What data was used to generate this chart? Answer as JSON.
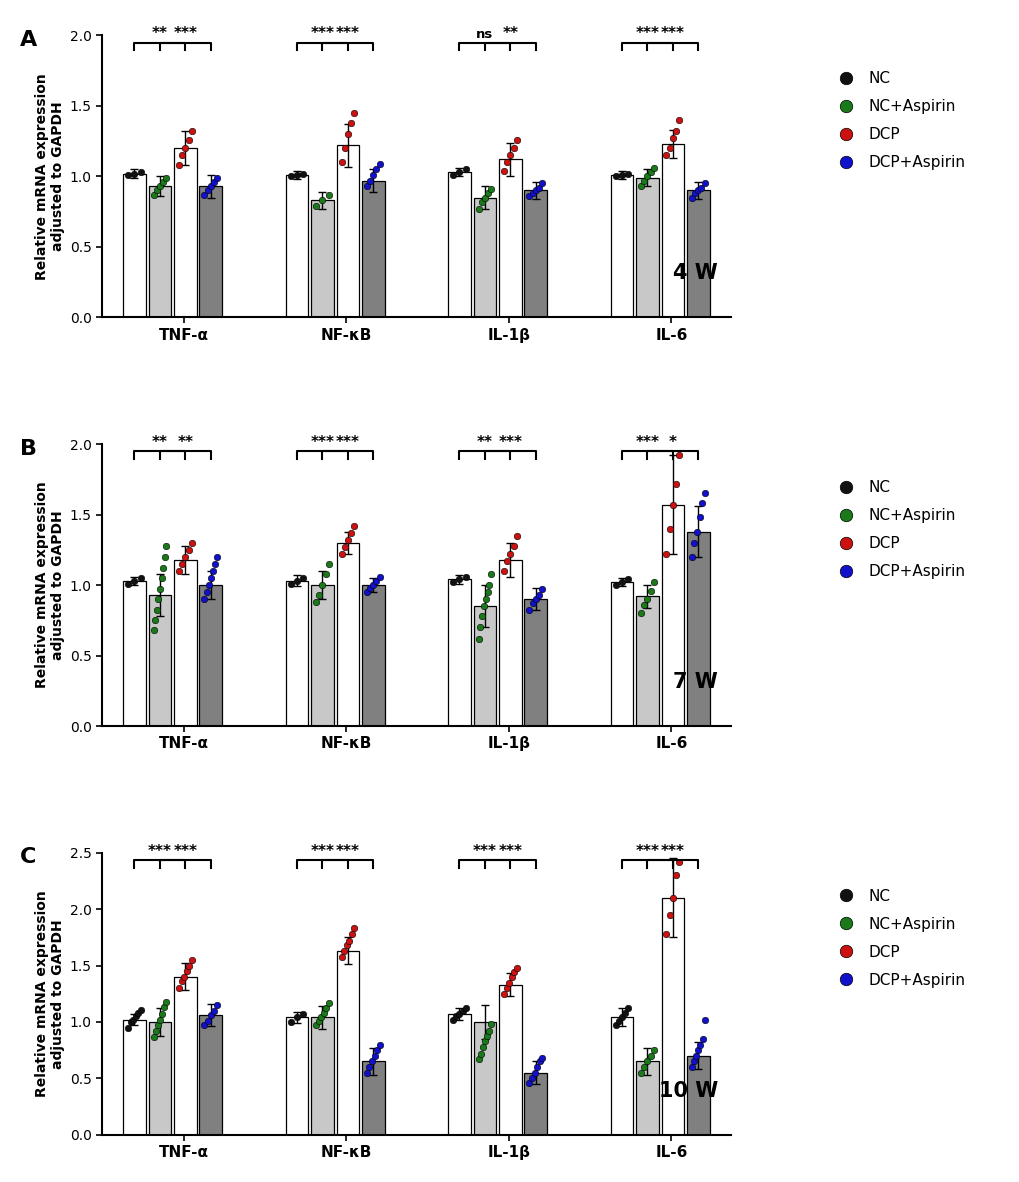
{
  "panels": [
    {
      "label": "A",
      "week_label": "4 W",
      "ylim": [
        0.0,
        2.0
      ],
      "yticks": [
        0.0,
        0.5,
        1.0,
        1.5,
        2.0
      ],
      "genes": [
        "TNF-α",
        "NF-κB",
        "IL-1β",
        "IL-6"
      ],
      "bar_means": [
        1.02,
        0.93,
        1.2,
        0.93,
        1.01,
        0.83,
        1.22,
        0.97,
        1.03,
        0.85,
        1.12,
        0.9,
        1.01,
        0.99,
        1.23,
        0.9
      ],
      "bar_sds": [
        0.03,
        0.07,
        0.12,
        0.08,
        0.03,
        0.06,
        0.15,
        0.08,
        0.03,
        0.08,
        0.12,
        0.06,
        0.03,
        0.06,
        0.1,
        0.06
      ],
      "dots": [
        [
          1.01,
          1.02,
          1.03
        ],
        [
          0.87,
          0.9,
          0.93,
          0.96,
          0.99
        ],
        [
          1.08,
          1.15,
          1.2,
          1.26,
          1.32
        ],
        [
          0.87,
          0.9,
          0.93,
          0.96,
          0.99
        ],
        [
          1.0,
          1.01,
          1.02
        ],
        [
          0.79,
          0.83,
          0.87
        ],
        [
          1.1,
          1.2,
          1.3,
          1.38,
          1.45
        ],
        [
          0.93,
          0.97,
          1.01,
          1.05,
          1.09
        ],
        [
          1.01,
          1.03,
          1.05
        ],
        [
          0.77,
          0.82,
          0.85,
          0.88,
          0.91
        ],
        [
          1.04,
          1.1,
          1.15,
          1.2,
          1.26
        ],
        [
          0.86,
          0.88,
          0.9,
          0.92,
          0.95
        ],
        [
          1.0,
          1.01,
          1.02
        ],
        [
          0.93,
          0.97,
          1.0,
          1.03,
          1.06
        ],
        [
          1.15,
          1.2,
          1.27,
          1.32,
          1.4
        ],
        [
          0.85,
          0.88,
          0.9,
          0.92,
          0.95
        ]
      ],
      "sig_left": [
        "**",
        "***",
        "ns",
        "***"
      ],
      "sig_right": [
        "***",
        "***",
        "**",
        "***"
      ]
    },
    {
      "label": "B",
      "week_label": "7 W",
      "ylim": [
        0.0,
        2.0
      ],
      "yticks": [
        0.0,
        0.5,
        1.0,
        1.5,
        2.0
      ],
      "genes": [
        "TNF-α",
        "NF-κB",
        "IL-1β",
        "IL-6"
      ],
      "bar_means": [
        1.03,
        0.93,
        1.18,
        1.0,
        1.03,
        1.0,
        1.3,
        1.0,
        1.04,
        0.85,
        1.18,
        0.9,
        1.02,
        0.92,
        1.57,
        1.38
      ],
      "bar_sds": [
        0.03,
        0.15,
        0.1,
        0.1,
        0.04,
        0.1,
        0.08,
        0.05,
        0.03,
        0.15,
        0.12,
        0.08,
        0.03,
        0.08,
        0.35,
        0.18
      ],
      "dots": [
        [
          1.01,
          1.03,
          1.05
        ],
        [
          0.68,
          0.75,
          0.82,
          0.9,
          0.97,
          1.05,
          1.12,
          1.2,
          1.28
        ],
        [
          1.1,
          1.15,
          1.2,
          1.25,
          1.3
        ],
        [
          0.9,
          0.95,
          1.0,
          1.05,
          1.1,
          1.15,
          1.2
        ],
        [
          1.01,
          1.03,
          1.05
        ],
        [
          0.88,
          0.93,
          1.0,
          1.08,
          1.15
        ],
        [
          1.22,
          1.27,
          1.32,
          1.37,
          1.42
        ],
        [
          0.95,
          0.98,
          1.0,
          1.03,
          1.06
        ],
        [
          1.02,
          1.04,
          1.06
        ],
        [
          0.62,
          0.7,
          0.78,
          0.85,
          0.9,
          0.95,
          1.0,
          1.08
        ],
        [
          1.1,
          1.17,
          1.22,
          1.28,
          1.35
        ],
        [
          0.82,
          0.87,
          0.9,
          0.93,
          0.97
        ],
        [
          1.0,
          1.02,
          1.04
        ],
        [
          0.8,
          0.86,
          0.9,
          0.96,
          1.02
        ],
        [
          1.22,
          1.4,
          1.57,
          1.72,
          1.92
        ],
        [
          1.2,
          1.3,
          1.38,
          1.48,
          1.58,
          1.65
        ]
      ],
      "sig_left": [
        "**",
        "***",
        "**",
        "***"
      ],
      "sig_right": [
        "**",
        "***",
        "***",
        "*"
      ]
    },
    {
      "label": "C",
      "week_label": "10 W",
      "ylim": [
        0.0,
        2.5
      ],
      "yticks": [
        0.0,
        0.5,
        1.0,
        1.5,
        2.0,
        2.5
      ],
      "genes": [
        "TNF-α",
        "NF-κB",
        "IL-1β",
        "IL-6"
      ],
      "bar_means": [
        1.02,
        1.0,
        1.4,
        1.06,
        1.04,
        1.04,
        1.63,
        0.65,
        1.07,
        1.0,
        1.33,
        0.55,
        1.04,
        0.65,
        2.1,
        0.7
      ],
      "bar_sds": [
        0.05,
        0.12,
        0.12,
        0.1,
        0.05,
        0.1,
        0.12,
        0.12,
        0.05,
        0.15,
        0.1,
        0.1,
        0.08,
        0.12,
        0.35,
        0.12
      ],
      "dots": [
        [
          0.95,
          1.0,
          1.02,
          1.05,
          1.08,
          1.11
        ],
        [
          0.87,
          0.92,
          0.97,
          1.02,
          1.07,
          1.13,
          1.18
        ],
        [
          1.3,
          1.36,
          1.4,
          1.45,
          1.5,
          1.55
        ],
        [
          0.97,
          1.01,
          1.06,
          1.1,
          1.15
        ],
        [
          1.0,
          1.04,
          1.07
        ],
        [
          0.97,
          1.01,
          1.04,
          1.08,
          1.12,
          1.17
        ],
        [
          1.58,
          1.63,
          1.68,
          1.72,
          1.78,
          1.83
        ],
        [
          0.55,
          0.6,
          0.65,
          0.7,
          0.75,
          0.8
        ],
        [
          1.02,
          1.05,
          1.07,
          1.1,
          1.12
        ],
        [
          0.67,
          0.72,
          0.78,
          0.83,
          0.88,
          0.92,
          0.98
        ],
        [
          1.25,
          1.3,
          1.35,
          1.4,
          1.44,
          1.48
        ],
        [
          0.46,
          0.5,
          0.55,
          0.6,
          0.65,
          0.68
        ],
        [
          0.97,
          1.01,
          1.04,
          1.08,
          1.12
        ],
        [
          0.55,
          0.6,
          0.65,
          0.7,
          0.75
        ],
        [
          1.78,
          1.95,
          2.1,
          2.3,
          2.42
        ],
        [
          0.6,
          0.65,
          0.7,
          0.75,
          0.8,
          0.85,
          1.02
        ]
      ],
      "sig_left": [
        "***",
        "***",
        "***",
        "***"
      ],
      "sig_right": [
        "***",
        "***",
        "***",
        "***"
      ]
    }
  ],
  "group_colors": [
    "#111111",
    "#1a7a1a",
    "#cc1111",
    "#1111cc"
  ],
  "group_names": [
    "NC",
    "NC+Aspirin",
    "DCP",
    "DCP+Aspirin"
  ],
  "bar_colors": [
    "#ffffff",
    "#c8c8c8",
    "#ffffff",
    "#808080"
  ],
  "ylabel": "Relative mRNA expression\nadjusted to GAPDH"
}
